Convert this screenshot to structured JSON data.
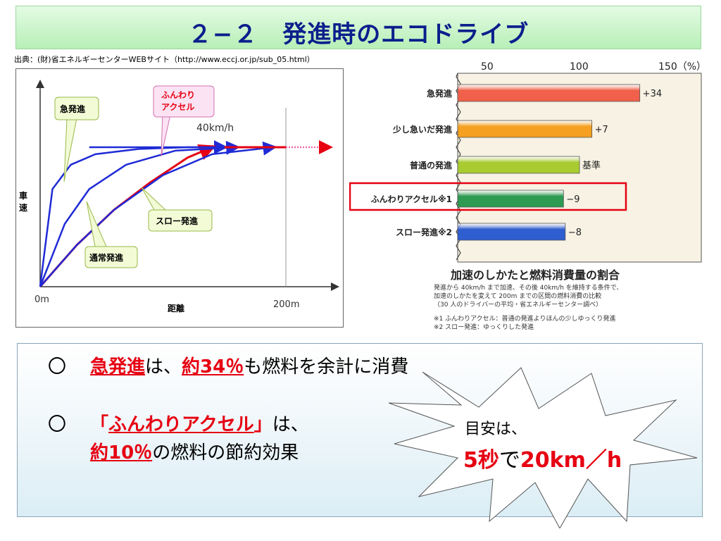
{
  "slide": {
    "title": "２−２　発進時のエコドライブ",
    "source": "出典：(財)省エネルギーセンターWEBサイト（http://www.eccj.or.jp/sub_05.html）"
  },
  "chart_data": [
    {
      "type": "line",
      "xlabel": "距離",
      "ylabel": "車速",
      "x_ticks": [
        "0m",
        "200m"
      ],
      "speed_label": "40km/h",
      "series": [
        {
          "name": "急発進",
          "color": "#1f2bd6",
          "x": [
            0,
            10,
            25,
            45,
            80,
            120,
            150
          ],
          "y": [
            0,
            28,
            35,
            38,
            39.5,
            40,
            40
          ]
        },
        {
          "name": "ふんわりアクセル",
          "color": "#e60012",
          "x": [
            0,
            30,
            60,
            90,
            120,
            140
          ],
          "y": [
            0,
            12,
            22,
            30,
            37,
            40
          ]
        },
        {
          "name": "通常発進",
          "color": "#1f2bd6",
          "x": [
            0,
            20,
            40,
            70,
            110,
            160
          ],
          "y": [
            0,
            18,
            28,
            35,
            39,
            40
          ]
        },
        {
          "name": "スロー発進",
          "color": "#1f2bd6",
          "x": [
            0,
            30,
            60,
            100,
            140,
            190
          ],
          "y": [
            0,
            12,
            22,
            32,
            38,
            40
          ]
        }
      ]
    },
    {
      "type": "bar",
      "title": "加速のしかたと燃料消費量の割合",
      "notes": [
        "発進から 40km/h まで加速、その後 40km/h を維持する条件で、",
        "加速のしかたを変えて 200m までの区間の燃料消費の比較",
        "（30 人のドライバーの平均・省エネルギーセンター調べ）",
        "※1  ふんわりアクセル：普通の発進よりほんの少しゆっくり発進",
        "※2  スロー発進：ゆっくりした発進"
      ],
      "axis_ticks": [
        "50",
        "100",
        "150（%）"
      ],
      "xlim": [
        50,
        150
      ],
      "categories": [
        "急発進",
        "少し急いだ発進",
        "普通の発進",
        "ふんわりアクセル※1",
        "スロー発進※2"
      ],
      "values": [
        134,
        107,
        100,
        91,
        92
      ],
      "labels": [
        "+34",
        "+7",
        "基準",
        "−9",
        "−8"
      ],
      "colors": [
        "#f0604a",
        "#f5a020",
        "#a8cc30",
        "#2e9a52",
        "#2f5ed0"
      ],
      "highlight": "ふんわりアクセル※1"
    }
  ],
  "callouts": {
    "kyu": "急発進",
    "funwari": "ふんわり\nアクセル",
    "tsujo": "通常発進",
    "slow": "スロー発進"
  },
  "bullets": {
    "mark": "〇",
    "line1": {
      "hl1": "急発進",
      "t1": "は、",
      "hl2": "約34％",
      "t2": "も燃料を余計に消費"
    },
    "line2": {
      "q_open": "「",
      "hl1": "ふんわりアクセル",
      "q_close": "」",
      "t1": "は、"
    },
    "line3": {
      "hl1": "約10％",
      "t1": "の燃料の節約効果"
    }
  },
  "burst": {
    "line1": "目安は、",
    "hl1": "5秒",
    "t1": "で",
    "hl2": "20km／h"
  }
}
